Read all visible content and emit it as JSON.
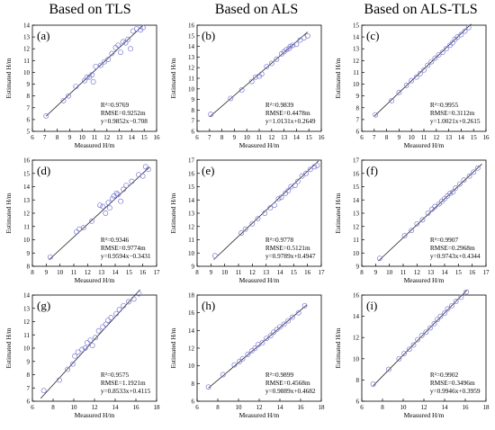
{
  "headers": [
    "Based  on TLS",
    "Based  on ALS",
    "Based  on ALS-TLS"
  ],
  "chart_data": [
    {
      "type": "scatter",
      "label": "(a)",
      "xlabel": "Measured H/m",
      "ylabel": "Estimated H/m",
      "xlim": [
        6,
        16
      ],
      "ylim": [
        5,
        14
      ],
      "xticks": [
        6,
        7,
        8,
        9,
        10,
        11,
        12,
        13,
        14,
        15,
        16
      ],
      "yticks": [
        5,
        6,
        7,
        8,
        9,
        10,
        11,
        12,
        13,
        14
      ],
      "stats": [
        "R²=0.9769",
        "RMSE=0.9252m",
        "y=0.9852x−0.708"
      ],
      "fit": [
        0.9852,
        -0.708
      ],
      "fit_range": [
        7.1,
        14.9
      ],
      "points": [
        [
          7.1,
          6.3
        ],
        [
          8.5,
          7.6
        ],
        [
          8.9,
          8.0
        ],
        [
          9.5,
          8.8
        ],
        [
          10.2,
          9.3
        ],
        [
          10.4,
          9.6
        ],
        [
          10.6,
          9.6
        ],
        [
          10.8,
          9.8
        ],
        [
          10.9,
          9.2
        ],
        [
          11.1,
          10.5
        ],
        [
          11.5,
          10.6
        ],
        [
          11.8,
          10.9
        ],
        [
          12.1,
          11.1
        ],
        [
          12.4,
          11.6
        ],
        [
          12.7,
          12.1
        ],
        [
          12.9,
          12.3
        ],
        [
          13.1,
          11.7
        ],
        [
          13.3,
          12.6
        ],
        [
          13.5,
          12.5
        ],
        [
          13.7,
          12.8
        ],
        [
          13.9,
          12.0
        ],
        [
          14.1,
          13.5
        ],
        [
          14.4,
          13.7
        ],
        [
          14.7,
          13.6
        ],
        [
          14.9,
          13.8
        ]
      ]
    },
    {
      "type": "scatter",
      "label": "(b)",
      "xlabel": "Measured H/m",
      "ylabel": "Estimated H/m",
      "xlim": [
        6,
        16
      ],
      "ylim": [
        6,
        16
      ],
      "xticks": [
        6,
        7,
        8,
        9,
        10,
        11,
        12,
        13,
        14,
        15,
        16
      ],
      "yticks": [
        6,
        7,
        8,
        9,
        10,
        11,
        12,
        13,
        14,
        15,
        16
      ],
      "stats": [
        "R²=0.9839",
        "RMSE=0.4478m",
        "y=1.0131x+0.2649"
      ],
      "fit": [
        1.0131,
        0.2649
      ],
      "fit_range": [
        7.0,
        14.9
      ],
      "points": [
        [
          7.1,
          7.6
        ],
        [
          8.7,
          9.1
        ],
        [
          9.6,
          9.9
        ],
        [
          10.4,
          10.7
        ],
        [
          10.7,
          11.1
        ],
        [
          11.0,
          11.2
        ],
        [
          11.2,
          11.4
        ],
        [
          11.6,
          12.1
        ],
        [
          12.0,
          12.4
        ],
        [
          12.4,
          12.8
        ],
        [
          12.8,
          13.3
        ],
        [
          13.0,
          13.5
        ],
        [
          13.2,
          13.7
        ],
        [
          13.4,
          13.8
        ],
        [
          13.5,
          14.0
        ],
        [
          13.7,
          14.1
        ],
        [
          14.0,
          14.2
        ],
        [
          14.3,
          14.6
        ],
        [
          14.6,
          14.8
        ],
        [
          14.9,
          15.0
        ]
      ]
    },
    {
      "type": "scatter",
      "label": "(c)",
      "xlabel": "Measured H/m",
      "ylabel": "Estimated H/m",
      "xlim": [
        6,
        16
      ],
      "ylim": [
        6,
        15
      ],
      "xticks": [
        6,
        7,
        8,
        9,
        10,
        11,
        12,
        13,
        14,
        15,
        16
      ],
      "yticks": [
        6,
        7,
        8,
        9,
        10,
        11,
        12,
        13,
        14,
        15
      ],
      "stats": [
        "R²=0.9955",
        "RMSE=0.3112m",
        "y=1.0021x+0.2615"
      ],
      "fit": [
        1.0021,
        0.2615
      ],
      "fit_range": [
        7.0,
        14.8
      ],
      "points": [
        [
          7.1,
          7.4
        ],
        [
          8.4,
          8.6
        ],
        [
          9.0,
          9.3
        ],
        [
          9.6,
          9.9
        ],
        [
          10.0,
          10.3
        ],
        [
          10.4,
          10.6
        ],
        [
          10.7,
          10.9
        ],
        [
          11.0,
          11.2
        ],
        [
          11.3,
          11.6
        ],
        [
          11.6,
          11.9
        ],
        [
          11.9,
          12.2
        ],
        [
          12.2,
          12.5
        ],
        [
          12.5,
          12.7
        ],
        [
          12.8,
          13.0
        ],
        [
          13.1,
          13.3
        ],
        [
          13.3,
          13.5
        ],
        [
          13.5,
          13.8
        ],
        [
          13.7,
          14.0
        ],
        [
          14.0,
          14.2
        ],
        [
          14.3,
          14.5
        ],
        [
          14.6,
          14.8
        ]
      ]
    },
    {
      "type": "scatter",
      "label": "(d)",
      "xlabel": "Measured H/m",
      "ylabel": "Estimated H/m",
      "xlim": [
        8,
        17
      ],
      "ylim": [
        8,
        16
      ],
      "xticks": [
        8,
        9,
        10,
        11,
        12,
        13,
        14,
        15,
        16,
        17
      ],
      "yticks": [
        8,
        9,
        10,
        11,
        12,
        13,
        14,
        15,
        16
      ],
      "stats": [
        "R²=0.9346",
        "RMSE=0.9774m",
        "y=0.9594x−0.3431"
      ],
      "fit": [
        0.9594,
        -0.3431
      ],
      "fit_range": [
        9.2,
        16.5
      ],
      "points": [
        [
          9.3,
          8.7
        ],
        [
          11.2,
          10.6
        ],
        [
          11.4,
          10.8
        ],
        [
          11.7,
          10.9
        ],
        [
          12.3,
          11.4
        ],
        [
          12.9,
          12.6
        ],
        [
          13.1,
          12.5
        ],
        [
          13.3,
          12.0
        ],
        [
          13.5,
          12.8
        ],
        [
          13.6,
          12.4
        ],
        [
          13.8,
          13.1
        ],
        [
          13.9,
          13.3
        ],
        [
          14.1,
          13.5
        ],
        [
          14.2,
          13.4
        ],
        [
          14.4,
          12.9
        ],
        [
          14.6,
          13.8
        ],
        [
          14.8,
          14.1
        ],
        [
          15.2,
          14.4
        ],
        [
          15.7,
          14.9
        ],
        [
          16.0,
          14.8
        ],
        [
          16.2,
          15.5
        ],
        [
          16.4,
          15.3
        ]
      ]
    },
    {
      "type": "scatter",
      "label": "(e)",
      "xlabel": "Measured H/m",
      "ylabel": "Estimated H/m",
      "xlim": [
        8,
        17
      ],
      "ylim": [
        9,
        17
      ],
      "xticks": [
        8,
        9,
        10,
        11,
        12,
        13,
        14,
        15,
        16,
        17
      ],
      "yticks": [
        9,
        10,
        11,
        12,
        13,
        14,
        15,
        16,
        17
      ],
      "stats": [
        "R²=0.9778",
        "RMSE=0.5121m",
        "y=0.9789x+0.4947"
      ],
      "fit": [
        0.9789,
        0.4947
      ],
      "fit_range": [
        9.2,
        16.8
      ],
      "points": [
        [
          9.3,
          9.8
        ],
        [
          11.2,
          11.5
        ],
        [
          11.5,
          11.8
        ],
        [
          12.0,
          12.2
        ],
        [
          12.4,
          12.6
        ],
        [
          12.9,
          13.0
        ],
        [
          13.3,
          13.4
        ],
        [
          13.6,
          13.6
        ],
        [
          13.9,
          14.1
        ],
        [
          14.1,
          14.2
        ],
        [
          14.4,
          14.5
        ],
        [
          14.6,
          14.7
        ],
        [
          14.8,
          15.0
        ],
        [
          15.1,
          15.1
        ],
        [
          15.3,
          15.4
        ],
        [
          15.6,
          15.8
        ],
        [
          15.9,
          16.0
        ],
        [
          16.2,
          16.3
        ],
        [
          16.5,
          16.5
        ],
        [
          16.7,
          16.6
        ]
      ]
    },
    {
      "type": "scatter",
      "label": "(f)",
      "xlabel": "Measured H/m",
      "ylabel": "Estimated H/m",
      "xlim": [
        8,
        17
      ],
      "ylim": [
        9,
        17
      ],
      "xticks": [
        8,
        9,
        10,
        11,
        12,
        13,
        14,
        15,
        16,
        17
      ],
      "yticks": [
        9,
        10,
        11,
        12,
        13,
        14,
        15,
        16,
        17
      ],
      "stats": [
        "R²=0.9907",
        "RMSE=0.2968m",
        "y=0.9743x+0.4344"
      ],
      "fit": [
        0.9743,
        0.4344
      ],
      "fit_range": [
        9.2,
        16.7
      ],
      "points": [
        [
          9.3,
          9.6
        ],
        [
          11.1,
          11.3
        ],
        [
          11.6,
          11.7
        ],
        [
          12.0,
          12.2
        ],
        [
          12.4,
          12.5
        ],
        [
          12.8,
          13.0
        ],
        [
          13.1,
          13.3
        ],
        [
          13.3,
          13.5
        ],
        [
          13.6,
          13.7
        ],
        [
          13.8,
          13.9
        ],
        [
          14.0,
          14.1
        ],
        [
          14.2,
          14.3
        ],
        [
          14.4,
          14.5
        ],
        [
          14.6,
          14.6
        ],
        [
          14.8,
          14.9
        ],
        [
          15.1,
          15.2
        ],
        [
          15.4,
          15.5
        ],
        [
          15.8,
          15.8
        ],
        [
          16.1,
          16.1
        ],
        [
          16.4,
          16.4
        ]
      ]
    },
    {
      "type": "scatter",
      "label": "(g)",
      "xlabel": "Measured H/m",
      "ylabel": "Estimated H/m",
      "xlim": [
        6,
        18
      ],
      "ylim": [
        6,
        14
      ],
      "xticks": [
        6,
        8,
        10,
        12,
        14,
        16,
        18
      ],
      "yticks": [
        6,
        7,
        8,
        9,
        10,
        11,
        12,
        13,
        14
      ],
      "stats": [
        "R²=0.9575",
        "RMSE=1.1921m",
        "y=0.8533x+0.4115"
      ],
      "fit": [
        0.8533,
        0.4115
      ],
      "fit_range": [
        6.8,
        16.5
      ],
      "points": [
        [
          7.1,
          6.8
        ],
        [
          8.6,
          7.6
        ],
        [
          9.4,
          8.4
        ],
        [
          9.9,
          8.8
        ],
        [
          10.1,
          9.4
        ],
        [
          10.4,
          9.7
        ],
        [
          10.8,
          9.9
        ],
        [
          11.1,
          10.0
        ],
        [
          11.3,
          10.4
        ],
        [
          11.6,
          10.6
        ],
        [
          11.8,
          10.2
        ],
        [
          12.1,
          10.8
        ],
        [
          12.4,
          11.3
        ],
        [
          12.8,
          11.6
        ],
        [
          13.1,
          11.8
        ],
        [
          13.3,
          12.1
        ],
        [
          13.6,
          12.3
        ],
        [
          14.1,
          12.6
        ],
        [
          14.4,
          12.9
        ],
        [
          14.8,
          13.2
        ],
        [
          15.3,
          13.5
        ],
        [
          15.8,
          13.7
        ],
        [
          16.3,
          14.1
        ]
      ]
    },
    {
      "type": "scatter",
      "label": "(h)",
      "xlabel": "Measured H/m",
      "ylabel": "Estimated H/m",
      "xlim": [
        6,
        18
      ],
      "ylim": [
        6,
        18
      ],
      "xticks": [
        6,
        8,
        10,
        12,
        14,
        16,
        18
      ],
      "yticks": [
        6,
        8,
        10,
        12,
        14,
        16,
        18
      ],
      "stats": [
        "R²=0.9899",
        "RMSE=0.4568m",
        "y=0.9889x+0.4682"
      ],
      "fit": [
        0.9889,
        0.4682
      ],
      "fit_range": [
        7.1,
        16.6
      ],
      "points": [
        [
          7.1,
          7.6
        ],
        [
          8.5,
          9.0
        ],
        [
          9.6,
          10.1
        ],
        [
          10.1,
          10.5
        ],
        [
          10.4,
          10.8
        ],
        [
          10.9,
          11.3
        ],
        [
          11.3,
          11.7
        ],
        [
          11.6,
          12.0
        ],
        [
          11.9,
          12.4
        ],
        [
          12.3,
          12.6
        ],
        [
          12.7,
          13.1
        ],
        [
          13.1,
          13.4
        ],
        [
          13.4,
          13.8
        ],
        [
          13.7,
          14.1
        ],
        [
          14.0,
          14.4
        ],
        [
          14.4,
          14.7
        ],
        [
          14.8,
          15.1
        ],
        [
          15.2,
          15.5
        ],
        [
          15.8,
          16.0
        ],
        [
          16.4,
          16.8
        ]
      ]
    },
    {
      "type": "scatter",
      "label": "(i)",
      "xlabel": "Measured H/m",
      "ylabel": "Estimated H/m",
      "xlim": [
        6,
        18
      ],
      "ylim": [
        6,
        16
      ],
      "xticks": [
        6,
        8,
        10,
        12,
        14,
        16,
        18
      ],
      "yticks": [
        6,
        8,
        10,
        12,
        14,
        16
      ],
      "stats": [
        "R²=0.9902",
        "RMSE=0.3496m",
        "y=0.9946x+0.3959"
      ],
      "fit": [
        0.9946,
        0.3959
      ],
      "fit_range": [
        7.1,
        16.4
      ],
      "points": [
        [
          7.1,
          7.6
        ],
        [
          8.6,
          9.0
        ],
        [
          9.6,
          10.0
        ],
        [
          10.1,
          10.5
        ],
        [
          10.6,
          10.9
        ],
        [
          11.0,
          11.3
        ],
        [
          11.4,
          11.8
        ],
        [
          11.8,
          12.2
        ],
        [
          12.2,
          12.5
        ],
        [
          12.6,
          12.9
        ],
        [
          13.0,
          13.3
        ],
        [
          13.3,
          13.7
        ],
        [
          13.6,
          14.0
        ],
        [
          14.0,
          14.3
        ],
        [
          14.3,
          14.7
        ],
        [
          14.7,
          15.0
        ],
        [
          15.1,
          15.4
        ],
        [
          15.6,
          15.8
        ],
        [
          16.1,
          16.3
        ]
      ]
    }
  ]
}
